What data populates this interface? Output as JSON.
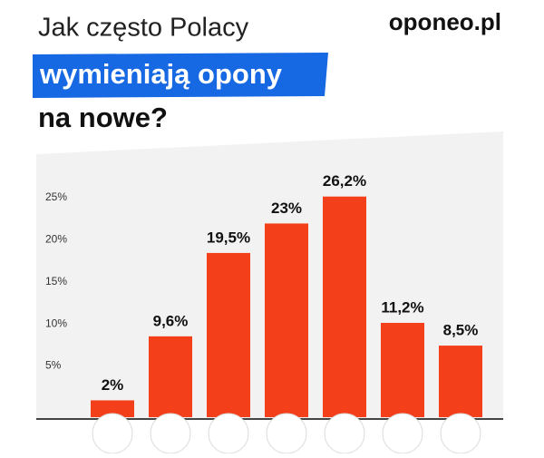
{
  "header": {
    "title_line1": "Jak często Polacy",
    "title_line2": "wymieniają opony",
    "title_line3": "na nowe?",
    "logo": "oponeo.pl"
  },
  "chart_data": {
    "type": "bar",
    "categories": [
      null,
      null,
      null,
      null,
      null,
      null,
      null
    ],
    "values": [
      2,
      9.6,
      19.5,
      23,
      26.2,
      11.2,
      8.5
    ],
    "value_labels": [
      "2%",
      "9,6%",
      "19,5%",
      "23%",
      "26,2%",
      "11,2%",
      "8,5%"
    ],
    "color": "#f4401a",
    "ylim": [
      0,
      28
    ],
    "yticks": [
      {
        "value": 5,
        "label": "5%"
      },
      {
        "value": 10,
        "label": "10%"
      },
      {
        "value": 15,
        "label": "15%"
      },
      {
        "value": 20,
        "label": "20%"
      },
      {
        "value": 25,
        "label": "25%"
      }
    ]
  }
}
